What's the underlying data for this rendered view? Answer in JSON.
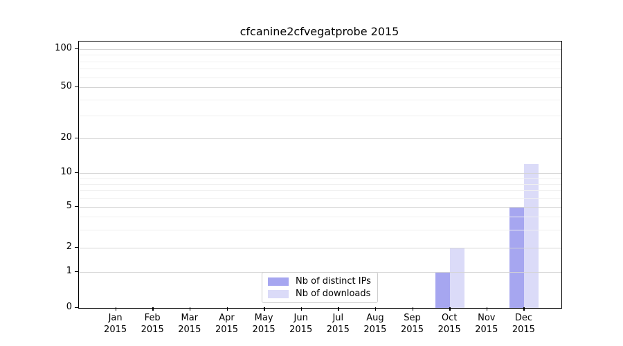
{
  "chart_data": {
    "type": "bar",
    "title": "cfcanine2cfvegatprobe 2015",
    "xlabel": "",
    "ylabel": "",
    "x_tick_months": [
      "Jan",
      "Feb",
      "Mar",
      "Apr",
      "May",
      "Jun",
      "Jul",
      "Aug",
      "Sep",
      "Oct",
      "Nov",
      "Dec"
    ],
    "x_tick_year": "2015",
    "y_scale": "symlog",
    "y_ticks": [
      0,
      1,
      2,
      5,
      10,
      20,
      50,
      100
    ],
    "y_minor_gridlines": [
      3,
      4,
      6,
      7,
      8,
      9,
      30,
      40,
      60,
      70,
      80,
      90
    ],
    "ylim": [
      0,
      110
    ],
    "grid": true,
    "legend_position": "lower center inside",
    "series": [
      {
        "name": "Nb of distinct IPs",
        "color": "#a6a6f0",
        "values": [
          0,
          0,
          0,
          0,
          0,
          0,
          0,
          0,
          0,
          1,
          0,
          5
        ]
      },
      {
        "name": "Nb of downloads",
        "color": "#dbdbf8",
        "values": [
          0,
          0,
          0,
          0,
          0,
          0,
          0,
          0,
          0,
          2,
          0,
          12
        ]
      }
    ]
  },
  "colors": {
    "major_grid": "#d4d4d4",
    "minor_grid": "#f0f0f0",
    "axis": "#000000",
    "legend_border": "#cccccc",
    "background": "#ffffff"
  }
}
